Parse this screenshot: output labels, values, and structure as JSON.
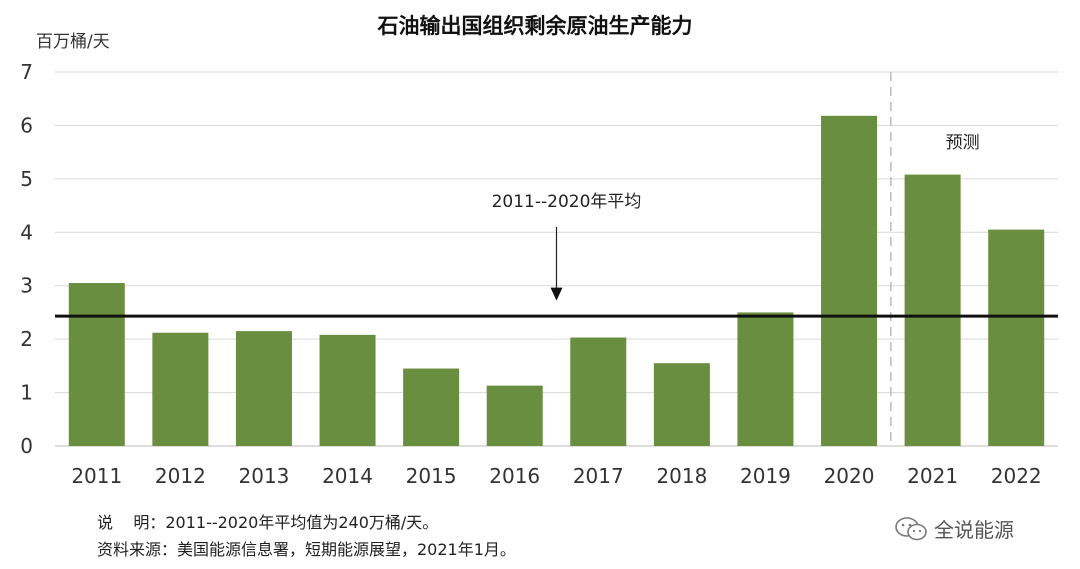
{
  "chart_data": {
    "type": "bar",
    "title": "石油输出国组织剩余原油生产能力",
    "unit_label": "百万桶/天",
    "categories": [
      "2011",
      "2012",
      "2013",
      "2014",
      "2015",
      "2016",
      "2017",
      "2018",
      "2019",
      "2020",
      "2021",
      "2022"
    ],
    "values": [
      3.05,
      2.12,
      2.15,
      2.08,
      1.45,
      1.13,
      2.03,
      1.55,
      2.5,
      6.18,
      5.08,
      4.05
    ],
    "ylim": [
      0,
      7
    ],
    "yticks": [
      "0",
      "1",
      "2",
      "3",
      "4",
      "5",
      "6",
      "7"
    ],
    "grid": true,
    "bar_color": "#6a8e3f",
    "average_value": 2.43,
    "average_label": "2011--2020年平均",
    "forecast_from": "2021",
    "forecast_label": "预测"
  },
  "notes": {
    "line1": "说    明：2011--2020年平均值为240万桶/天。",
    "line2": "资料来源：美国能源信息署，短期能源展望，2021年1月。"
  },
  "watermark": {
    "text": "全说能源",
    "icon": "wechat-icon"
  }
}
